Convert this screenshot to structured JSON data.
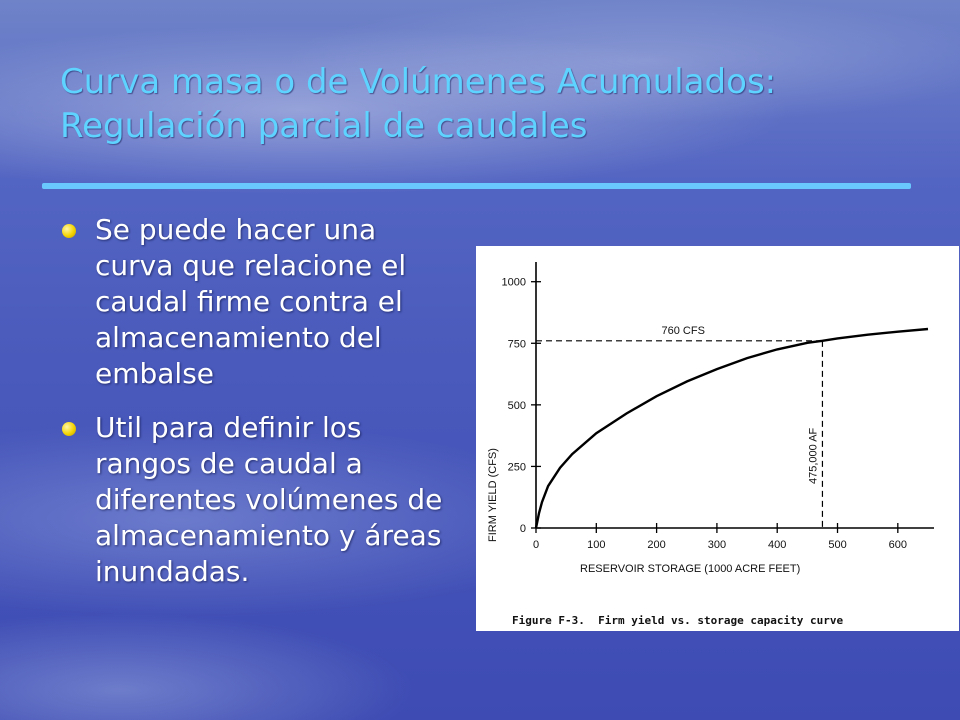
{
  "slide": {
    "title_line1": "Curva masa o de Volúmenes Acumulados:",
    "title_line2": "Regulación parcial de caudales",
    "bullets": [
      "Se puede hacer una curva que relacione el caudal firme contra el almacenamiento del embalse",
      "Util para definir los rangos de caudal a diferentes volúmenes de almacenamiento y áreas inundadas."
    ],
    "colors": {
      "title": "#5fd3ff",
      "rule": "#69c9ff",
      "bullet": "#f4d400",
      "text": "#ffffff"
    }
  },
  "chart_data": {
    "type": "line",
    "xlabel": "RESERVOIR STORAGE (1000 ACRE FEET)",
    "ylabel": "FIRM YIELD (CFS)",
    "xlim": [
      0,
      660
    ],
    "ylim": [
      0,
      1080
    ],
    "x_ticks": [
      0,
      100,
      200,
      300,
      400,
      500,
      600
    ],
    "y_ticks": [
      0,
      250,
      500,
      750,
      1000
    ],
    "x_tick_labels": [
      "0",
      "100",
      "200",
      "300",
      "400",
      "500",
      "600"
    ],
    "y_tick_labels": [
      "0",
      "250",
      "500",
      "750",
      "1000"
    ],
    "series": [
      {
        "x": [
          0,
          5,
          10,
          20,
          40,
          60,
          100,
          150,
          200,
          250,
          300,
          350,
          400,
          450,
          475,
          500,
          550,
          600,
          650
        ],
        "y": [
          0,
          60,
          105,
          170,
          245,
          300,
          385,
          465,
          535,
          595,
          645,
          690,
          725,
          752,
          760,
          770,
          785,
          797,
          808
        ]
      }
    ],
    "annotations": {
      "point_x": 475,
      "point_y": 760,
      "y_annotation": "760 CFS",
      "x_annotation": "475,000 AF"
    },
    "caption": "Figure F-3.  Firm yield vs. storage capacity curve"
  }
}
